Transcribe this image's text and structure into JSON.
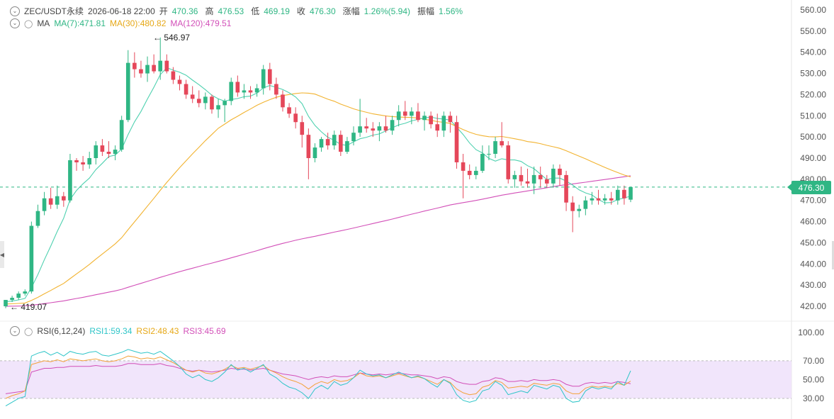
{
  "header": {
    "symbol": "ZEC/USDT永续",
    "datetime": "2026-06-18 22:00",
    "open_label": "开",
    "open": "470.36",
    "high_label": "高",
    "high": "476.53",
    "low_label": "低",
    "low": "469.19",
    "close_label": "收",
    "close": "476.30",
    "change_label": "涨幅",
    "change": "1.26%(5.94)",
    "amplitude_label": "振幅",
    "amplitude": "1.56%"
  },
  "ma_legend": {
    "title": "MA",
    "ma7": "MA(7):471.81",
    "ma30": "MA(30):480.82",
    "ma120": "MA(120):479.51"
  },
  "rsi_legend": {
    "title": "RSI(6,12,24)",
    "rsi1": "RSI1:59.34",
    "rsi2": "RSI2:48.43",
    "rsi3": "RSI3:45.69"
  },
  "current_price": "476.30",
  "high_marker": "← 546.97",
  "low_marker": "← 419.07",
  "colors": {
    "up": "#2fb684",
    "down": "#e5475a",
    "ma7": "#4fd1b0",
    "ma30": "#f2b330",
    "ma120": "#d24fb8",
    "rsi1": "#2ec5c8",
    "rsi_band": "#f1e5fb"
  },
  "chart_data": {
    "type": "candlestick",
    "price_axis": {
      "ticks": [
        "560.00",
        "550.00",
        "540.00",
        "530.00",
        "520.00",
        "510.00",
        "500.00",
        "490.00",
        "480.00",
        "470.00",
        "460.00",
        "450.00",
        "440.00",
        "430.00",
        "420.00"
      ],
      "range": [
        417,
        562
      ]
    },
    "rsi_axis": {
      "ticks": [
        "100.00",
        "70.00",
        "50.00",
        "30.00"
      ],
      "range": [
        25,
        105
      ],
      "band": [
        30,
        70
      ]
    },
    "candles": [
      [
        420,
        423,
        419.07,
        423
      ],
      [
        423,
        425,
        422,
        424
      ],
      [
        424,
        427,
        423,
        426
      ],
      [
        426,
        428,
        425,
        427
      ],
      [
        427,
        460,
        426,
        458
      ],
      [
        458,
        468,
        457,
        465
      ],
      [
        465,
        474,
        463,
        471
      ],
      [
        471,
        476,
        466,
        468
      ],
      [
        468,
        477,
        466,
        472
      ],
      [
        472,
        474,
        467,
        470
      ],
      [
        470,
        492,
        469,
        489
      ],
      [
        489,
        490,
        484,
        488
      ],
      [
        488,
        491,
        484,
        487
      ],
      [
        487,
        493,
        485,
        490
      ],
      [
        490,
        498,
        487,
        496
      ],
      [
        496,
        499,
        491,
        493
      ],
      [
        493,
        498,
        490,
        492
      ],
      [
        492,
        496,
        489,
        494
      ],
      [
        494,
        510,
        493,
        508
      ],
      [
        508,
        541,
        507,
        535
      ],
      [
        535,
        540,
        528,
        532
      ],
      [
        532,
        536,
        528,
        530
      ],
      [
        530,
        538,
        526,
        534
      ],
      [
        534,
        539,
        530,
        531
      ],
      [
        531,
        546.97,
        527,
        536
      ],
      [
        536,
        539,
        530,
        531
      ],
      [
        531,
        533,
        525,
        527
      ],
      [
        527,
        529,
        522,
        525
      ],
      [
        525,
        527,
        518,
        520
      ],
      [
        520,
        524,
        516,
        518
      ],
      [
        518,
        522,
        514,
        516
      ],
      [
        516,
        521,
        513,
        519
      ],
      [
        519,
        520,
        511,
        513
      ],
      [
        513,
        518,
        509,
        515
      ],
      [
        515,
        518,
        507,
        517
      ],
      [
        517,
        528,
        515,
        526
      ],
      [
        526,
        529,
        519,
        521
      ],
      [
        521,
        525,
        518,
        522
      ],
      [
        522,
        524,
        518,
        521
      ],
      [
        521,
        525,
        519,
        523
      ],
      [
        523,
        534,
        520,
        532
      ],
      [
        532,
        535,
        522,
        525
      ],
      [
        525,
        528,
        518,
        520
      ],
      [
        520,
        522,
        512,
        514
      ],
      [
        514,
        516,
        509,
        511
      ],
      [
        511,
        514,
        504,
        507
      ],
      [
        507,
        510,
        495,
        501
      ],
      [
        501,
        504,
        480,
        490
      ],
      [
        490,
        497,
        488,
        495
      ],
      [
        495,
        500,
        493,
        499
      ],
      [
        499,
        502,
        494,
        496
      ],
      [
        496,
        503,
        494,
        501
      ],
      [
        501,
        503,
        491,
        493
      ],
      [
        493,
        500,
        492,
        498
      ],
      [
        498,
        505,
        496,
        502
      ],
      [
        502,
        518,
        500,
        505
      ],
      [
        505,
        509,
        502,
        504
      ],
      [
        504,
        507,
        500,
        503
      ],
      [
        503,
        507,
        498,
        505
      ],
      [
        505,
        510,
        502,
        503
      ],
      [
        503,
        510,
        501,
        508
      ],
      [
        508,
        515,
        505,
        512
      ],
      [
        512,
        517,
        508,
        510
      ],
      [
        510,
        514,
        506,
        512
      ],
      [
        512,
        516,
        507,
        508
      ],
      [
        508,
        512,
        503,
        510
      ],
      [
        510,
        512,
        504,
        506
      ],
      [
        506,
        511,
        500,
        503
      ],
      [
        503,
        512,
        500,
        510
      ],
      [
        510,
        512,
        502,
        507
      ],
      [
        507,
        510,
        485,
        488
      ],
      [
        488,
        492,
        471,
        484
      ],
      [
        484,
        487,
        480,
        482
      ],
      [
        482,
        486,
        480,
        484
      ],
      [
        484,
        496,
        483,
        492
      ],
      [
        492,
        496,
        489,
        492
      ],
      [
        492,
        500,
        490,
        498
      ],
      [
        498,
        507,
        495,
        496
      ],
      [
        496,
        498,
        478,
        480
      ],
      [
        480,
        484,
        476,
        482
      ],
      [
        482,
        486,
        477,
        479
      ],
      [
        479,
        485,
        476,
        478
      ],
      [
        478,
        486,
        473,
        482
      ],
      [
        482,
        486,
        476,
        480
      ],
      [
        480,
        482,
        476,
        478
      ],
      [
        478,
        487,
        476,
        485
      ],
      [
        485,
        487,
        477,
        482
      ],
      [
        482,
        484,
        465,
        469
      ],
      [
        469,
        472,
        455,
        465
      ],
      [
        465,
        468,
        462,
        466
      ],
      [
        466,
        472,
        463,
        470
      ],
      [
        470,
        474,
        468,
        471
      ],
      [
        471,
        475,
        468,
        470
      ],
      [
        470,
        473,
        468,
        471
      ],
      [
        471,
        474,
        468,
        470
      ],
      [
        470,
        477,
        468,
        475
      ],
      [
        475,
        477,
        468,
        471
      ],
      [
        470.36,
        476.53,
        469.19,
        476.3
      ]
    ],
    "rsi1": [
      22,
      26,
      30,
      32,
      75,
      78,
      80,
      76,
      79,
      75,
      80,
      78,
      77,
      79,
      80,
      76,
      75,
      77,
      79,
      82,
      80,
      78,
      79,
      77,
      80,
      75,
      70,
      64,
      56,
      52,
      55,
      50,
      48,
      52,
      58,
      66,
      60,
      62,
      58,
      62,
      66,
      56,
      52,
      46,
      42,
      40,
      36,
      30,
      40,
      44,
      40,
      48,
      44,
      46,
      52,
      60,
      56,
      54,
      55,
      52,
      55,
      58,
      55,
      52,
      54,
      51,
      46,
      42,
      50,
      46,
      34,
      28,
      26,
      28,
      38,
      40,
      48,
      44,
      34,
      36,
      38,
      36,
      44,
      42,
      40,
      44,
      42,
      30,
      26,
      27,
      38,
      42,
      40,
      42,
      40,
      48,
      44,
      59.34
    ],
    "rsi2": [
      30,
      33,
      35,
      38,
      66,
      68,
      70,
      69,
      71,
      69,
      72,
      71,
      70,
      71,
      72,
      70,
      69,
      70,
      72,
      75,
      74,
      72,
      73,
      72,
      74,
      71,
      68,
      64,
      60,
      58,
      60,
      57,
      56,
      58,
      61,
      65,
      62,
      63,
      61,
      63,
      65,
      60,
      57,
      53,
      50,
      48,
      45,
      40,
      45,
      48,
      46,
      50,
      48,
      49,
      52,
      57,
      54,
      53,
      54,
      52,
      54,
      56,
      54,
      52,
      53,
      51,
      48,
      45,
      50,
      47,
      40,
      36,
      34,
      35,
      42,
      44,
      49,
      47,
      41,
      42,
      43,
      42,
      46,
      45,
      44,
      46,
      45,
      38,
      35,
      35,
      41,
      43,
      42,
      43,
      42,
      46,
      44,
      48.43
    ],
    "rsi3": [
      35,
      36,
      37,
      38,
      58,
      60,
      62,
      62,
      63,
      63,
      64,
      64,
      64,
      64,
      65,
      64,
      64,
      64,
      65,
      67,
      67,
      66,
      66,
      66,
      67,
      65,
      64,
      62,
      60,
      59,
      60,
      59,
      58,
      59,
      60,
      62,
      61,
      61,
      60,
      61,
      62,
      60,
      58,
      56,
      55,
      54,
      52,
      50,
      52,
      53,
      52,
      54,
      53,
      53,
      55,
      57,
      56,
      55,
      56,
      55,
      56,
      57,
      56,
      55,
      55,
      54,
      53,
      51,
      53,
      52,
      48,
      46,
      45,
      45,
      48,
      49,
      52,
      51,
      48,
      48,
      49,
      48,
      50,
      49,
      49,
      50,
      49,
      45,
      43,
      43,
      46,
      47,
      46,
      47,
      46,
      48,
      47,
      45.69
    ]
  }
}
